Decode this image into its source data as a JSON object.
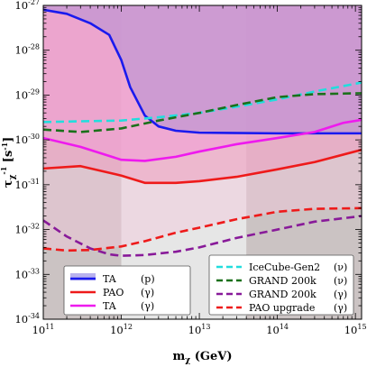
{
  "chart_data": {
    "type": "line",
    "title": "",
    "xlabel": "m",
    "xlabel_sub": "χ",
    "xlabel_unit": "(GeV)",
    "ylabel": "τ",
    "ylabel_sub": "χ",
    "ylabel_sup": "-1",
    "ylabel_unit": "[s",
    "ylabel_unit_sup": "-1",
    "ylabel_unit_end": "]",
    "x_scale": "log",
    "y_scale": "log",
    "xlim": [
      100000000000.0,
      1200000000000000.0
    ],
    "ylim": [
      1e-34,
      1e-27
    ],
    "x_ticks": [
      {
        "base": "10",
        "exp": "11",
        "value": 100000000000.0
      },
      {
        "base": "10",
        "exp": "12",
        "value": 1000000000000.0
      },
      {
        "base": "10",
        "exp": "13",
        "value": 10000000000000.0
      },
      {
        "base": "10",
        "exp": "14",
        "value": 100000000000000.0
      },
      {
        "base": "10",
        "exp": "15",
        "value": 1000000000000000.0
      }
    ],
    "y_ticks": [
      {
        "base": "10",
        "exp": "-27",
        "value": 1e-27
      },
      {
        "base": "10",
        "exp": "-28",
        "value": 1e-28
      },
      {
        "base": "10",
        "exp": "-29",
        "value": 1e-29
      },
      {
        "base": "10",
        "exp": "-30",
        "value": 1e-30
      },
      {
        "base": "10",
        "exp": "-31",
        "value": 1e-31
      },
      {
        "base": "10",
        "exp": "-32",
        "value": 1e-32
      },
      {
        "base": "10",
        "exp": "-33",
        "value": 1e-33
      },
      {
        "base": "10",
        "exp": "-34",
        "value": 1e-34
      }
    ],
    "shaded_bands": [
      {
        "x_range": [
          100000000000.0,
          1000000000000.0
        ],
        "color": "#b5a5a5"
      },
      {
        "x_range": [
          40000000000000.0,
          1200000000000000.0
        ],
        "color": "#b5a5a5"
      }
    ],
    "series": [
      {
        "name": "TA",
        "tag": "(p)",
        "color": "#1a1aee",
        "fill": "#7b62cc",
        "dash": "solid",
        "legend_group": 1,
        "x": [
          100000000000.0,
          200000000000.0,
          400000000000.0,
          700000000000.0,
          1000000000000.0,
          1300000000000.0,
          2000000000000.0,
          3000000000000.0,
          5000000000000.0,
          10000000000000.0,
          100000000000000.0,
          1200000000000000.0
        ],
        "y": [
          8e-28,
          6.5e-28,
          4e-28,
          2.2e-28,
          6e-29,
          1.5e-29,
          3.5e-30,
          2e-30,
          1.6e-30,
          1.45e-30,
          1.4e-30,
          1.4e-30
        ]
      },
      {
        "name": "PAO",
        "tag": "(γ)",
        "color": "#ee1a1a",
        "fill": "#e87aa8",
        "dash": "solid",
        "legend_group": 1,
        "x": [
          100000000000.0,
          300000000000.0,
          1000000000000.0,
          2000000000000.0,
          5000000000000.0,
          10000000000000.0,
          30000000000000.0,
          100000000000000.0,
          300000000000000.0,
          1200000000000000.0
        ],
        "y": [
          2.3e-31,
          2.6e-31,
          1.6e-31,
          1.1e-31,
          1.1e-31,
          1.2e-31,
          1.5e-31,
          2.2e-31,
          3.2e-31,
          6e-31
        ]
      },
      {
        "name": "TA",
        "tag": "(γ)",
        "color": "#ee1aee",
        "fill": "#ee7ad0",
        "dash": "solid",
        "legend_group": 1,
        "x": [
          100000000000.0,
          300000000000.0,
          1000000000000.0,
          2000000000000.0,
          5000000000000.0,
          10000000000000.0,
          30000000000000.0,
          100000000000000.0,
          300000000000000.0,
          700000000000000.0,
          1200000000000000.0
        ],
        "y": [
          1.1e-30,
          7e-31,
          3.6e-31,
          3.4e-31,
          4.2e-31,
          5.5e-31,
          8e-31,
          1.1e-30,
          1.5e-30,
          2.4e-30,
          2.8e-30
        ]
      },
      {
        "name": "IceCube-Gen2",
        "tag": "(ν)",
        "color": "#22dddd",
        "dash": "dashed",
        "legend_group": 2,
        "x": [
          100000000000.0,
          300000000000.0,
          1000000000000.0,
          3000000000000.0,
          10000000000000.0,
          30000000000000.0,
          100000000000000.0,
          300000000000000.0,
          1200000000000000.0
        ],
        "y": [
          2.5e-30,
          2.6e-30,
          2.7e-30,
          3.2e-30,
          4e-30,
          5.5e-30,
          8e-30,
          1.2e-29,
          1.9e-29
        ]
      },
      {
        "name": "GRAND 200k",
        "tag": "(ν)",
        "color": "#1a701a",
        "dash": "dashed",
        "legend_group": 2,
        "x": [
          100000000000.0,
          300000000000.0,
          1000000000000.0,
          3000000000000.0,
          10000000000000.0,
          30000000000000.0,
          100000000000000.0,
          300000000000000.0,
          1200000000000000.0
        ],
        "y": [
          1.7e-30,
          1.5e-30,
          1.8e-30,
          2.7e-30,
          4e-30,
          6e-30,
          9e-30,
          1.05e-29,
          1.1e-29
        ]
      },
      {
        "name": "GRAND 200k",
        "tag": "(γ)",
        "color": "#881a99",
        "dash": "dashed",
        "legend_group": 2,
        "x": [
          100000000000.0,
          200000000000.0,
          400000000000.0,
          700000000000.0,
          1000000000000.0,
          2000000000000.0,
          5000000000000.0,
          10000000000000.0,
          30000000000000.0,
          100000000000000.0,
          300000000000000.0,
          1200000000000000.0
        ],
        "y": [
          1.6e-32,
          7e-33,
          3.8e-33,
          2.8e-33,
          2.6e-33,
          2.7e-33,
          3.2e-33,
          4e-33,
          6.5e-33,
          1e-32,
          1.5e-32,
          2e-32
        ]
      },
      {
        "name": "PAO upgrade",
        "tag": "(γ)",
        "color": "#ee1a1a",
        "dash": "dashed",
        "legend_group": 2,
        "x": [
          100000000000.0,
          200000000000.0,
          400000000000.0,
          1000000000000.0,
          2000000000000.0,
          5000000000000.0,
          10000000000000.0,
          30000000000000.0,
          100000000000000.0,
          300000000000000.0,
          1200000000000000.0
        ],
        "y": [
          3.8e-33,
          3.4e-33,
          3.5e-33,
          4.2e-33,
          5.5e-33,
          8.5e-33,
          1.1e-32,
          1.7e-32,
          2.5e-32,
          2.9e-32,
          3e-32
        ]
      }
    ]
  }
}
